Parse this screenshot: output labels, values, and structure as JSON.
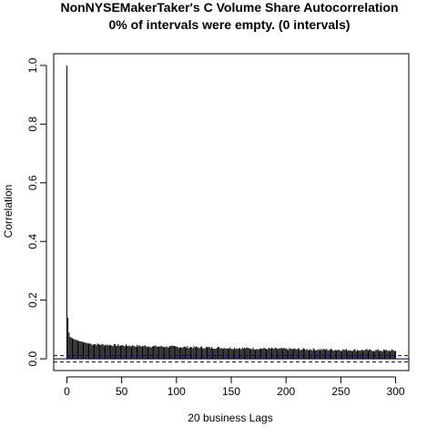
{
  "chart_data": {
    "type": "bar",
    "title": "NonNYSEMakerTaker's C Volume Share Autocorrelation",
    "subtitle": "0% of intervals were empty. (0 intervals)",
    "xlabel": "20 business Lags",
    "ylabel": "Correlation",
    "xlim": [
      -12,
      312
    ],
    "ylim": [
      -0.04,
      1.04
    ],
    "x_ticks": [
      0,
      50,
      100,
      150,
      200,
      250,
      300
    ],
    "x_tick_labels": [
      "0",
      "50",
      "100",
      "150",
      "200",
      "250",
      "300"
    ],
    "y_ticks": [
      0.0,
      0.2,
      0.4,
      0.6,
      0.8,
      1.0
    ],
    "y_tick_labels": [
      "0.0",
      "0.2",
      "0.4",
      "0.6",
      "0.8",
      "1.0"
    ],
    "grid": false,
    "legend": "none",
    "confidence_band": {
      "upper": 0.011,
      "lower": -0.011,
      "color": "#00008B",
      "style": "dashed"
    },
    "zero_line": {
      "value": 0,
      "color": "#000000"
    },
    "bar_color": "#000000",
    "acf": {
      "max_lag": 300,
      "first_values": [
        1.0,
        0.14,
        0.09,
        0.075,
        0.072,
        0.07,
        0.068,
        0.066,
        0.065,
        0.064,
        0.062,
        0.061,
        0.06,
        0.059,
        0.058,
        0.057,
        0.056,
        0.055,
        0.054,
        0.053,
        0.052
      ],
      "tail_start_value": 0.052,
      "tail_end_value": 0.028
    }
  }
}
